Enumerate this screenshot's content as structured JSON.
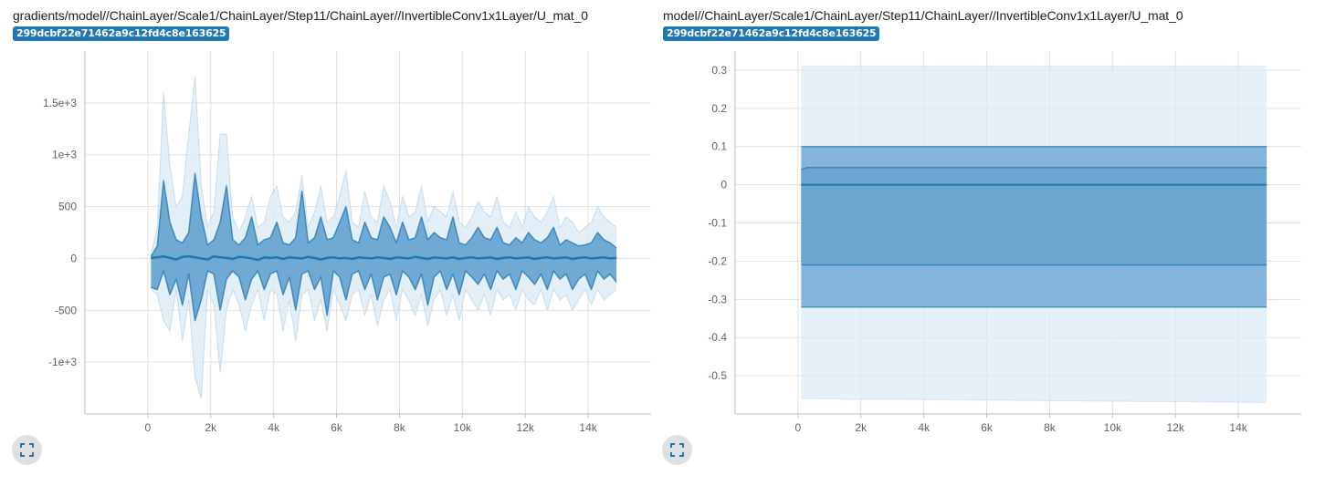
{
  "cards": [
    {
      "title": "gradients/model//ChainLayer/Scale1/ChainLayer/Step11/ChainLayer//InvertibleConv1x1Layer/U_mat_0",
      "run_tag": "299dcbf22e71462a9c12fd4c8e163625",
      "expand_icon": "fullscreen-icon"
    },
    {
      "title": "model//ChainLayer/Scale1/ChainLayer/Step11/ChainLayer//InvertibleConv1x1Layer/U_mat_0",
      "run_tag": "299dcbf22e71462a9c12fd4c8e163625",
      "expand_icon": "fullscreen-icon"
    }
  ],
  "colors": {
    "accent": "#1f77b4",
    "band_light": "#deebf5",
    "band_mid": "#7fb0d8",
    "band_dark": "#5c9ccc",
    "grid": "#e0e0e0"
  },
  "chart_data": [
    {
      "type": "area",
      "title": "gradients/model//ChainLayer/Scale1/ChainLayer/Step11/ChainLayer//InvertibleConv1x1Layer/U_mat_0",
      "xlabel": "",
      "ylabel": "",
      "xlim": [
        -2000,
        16000
      ],
      "ylim": [
        -1500,
        2000
      ],
      "x_ticks": [
        0,
        2000,
        4000,
        6000,
        8000,
        10000,
        12000,
        14000
      ],
      "x_tick_labels": [
        "0",
        "2k",
        "4k",
        "6k",
        "8k",
        "10k",
        "12k",
        "14k"
      ],
      "y_ticks": [
        -1000,
        -500,
        0,
        500,
        1000,
        1500
      ],
      "y_tick_labels": [
        "-1e+3",
        "-500",
        "0",
        "500",
        "1e+3",
        "1.5e+3"
      ],
      "grid": true,
      "bands": {
        "x": [
          100,
          300,
          500,
          700,
          900,
          1100,
          1300,
          1500,
          1700,
          1900,
          2100,
          2300,
          2500,
          2700,
          2900,
          3100,
          3300,
          3500,
          3700,
          3900,
          4100,
          4300,
          4500,
          4700,
          4900,
          5100,
          5300,
          5500,
          5700,
          5900,
          6100,
          6300,
          6500,
          6700,
          6900,
          7100,
          7300,
          7500,
          7700,
          7900,
          8100,
          8300,
          8500,
          8700,
          8900,
          9100,
          9300,
          9500,
          9700,
          9900,
          10100,
          10300,
          10500,
          10700,
          10900,
          11100,
          11300,
          11500,
          11700,
          11900,
          12100,
          12300,
          12500,
          12700,
          12900,
          13100,
          13300,
          13500,
          13700,
          13900,
          14100,
          14300,
          14500,
          14700,
          14900
        ],
        "max": [
          50,
          300,
          1600,
          900,
          500,
          600,
          1200,
          1750,
          700,
          300,
          450,
          1200,
          1200,
          400,
          250,
          400,
          600,
          300,
          350,
          600,
          700,
          400,
          350,
          450,
          800,
          300,
          450,
          700,
          350,
          400,
          600,
          850,
          350,
          300,
          650,
          400,
          350,
          700,
          550,
          300,
          600,
          400,
          450,
          700,
          350,
          500,
          450,
          400,
          650,
          350,
          300,
          400,
          550,
          450,
          400,
          600,
          350,
          300,
          450,
          300,
          500,
          400,
          350,
          450,
          600,
          300,
          400,
          350,
          250,
          300,
          350,
          500,
          400,
          350,
          300
        ],
        "q3": [
          20,
          120,
          750,
          350,
          180,
          150,
          250,
          820,
          400,
          130,
          180,
          350,
          700,
          180,
          130,
          200,
          400,
          130,
          180,
          200,
          350,
          150,
          130,
          200,
          650,
          150,
          200,
          400,
          180,
          200,
          350,
          500,
          180,
          150,
          350,
          200,
          180,
          400,
          300,
          150,
          350,
          180,
          200,
          400,
          180,
          250,
          200,
          180,
          400,
          150,
          130,
          200,
          300,
          200,
          180,
          300,
          150,
          130,
          200,
          150,
          250,
          180,
          150,
          200,
          300,
          130,
          180,
          150,
          120,
          130,
          150,
          250,
          180,
          150,
          100
        ],
        "median": [
          5,
          10,
          20,
          5,
          -10,
          15,
          20,
          10,
          0,
          -10,
          20,
          10,
          5,
          -5,
          15,
          10,
          0,
          -15,
          10,
          5,
          10,
          -5,
          10,
          5,
          0,
          15,
          5,
          -10,
          5,
          10,
          0,
          5,
          -5,
          10,
          5,
          0,
          10,
          5,
          -5,
          10,
          5,
          0,
          15,
          5,
          -5,
          10,
          5,
          0,
          10,
          -5,
          5,
          10,
          0,
          5,
          10,
          -5,
          5,
          10,
          0,
          5,
          10,
          -5,
          5,
          10,
          0,
          5,
          10,
          -5,
          5,
          10,
          0,
          5,
          10,
          0,
          5
        ],
        "q1": [
          -280,
          -300,
          -120,
          -350,
          -200,
          -450,
          -150,
          -600,
          -400,
          -120,
          -150,
          -500,
          -200,
          -120,
          -180,
          -400,
          -200,
          -120,
          -300,
          -150,
          -120,
          -350,
          -180,
          -500,
          -150,
          -120,
          -300,
          -180,
          -550,
          -120,
          -180,
          -400,
          -150,
          -120,
          -300,
          -150,
          -400,
          -180,
          -150,
          -350,
          -120,
          -180,
          -300,
          -150,
          -450,
          -180,
          -120,
          -300,
          -150,
          -350,
          -120,
          -180,
          -250,
          -150,
          -300,
          -120,
          -200,
          -150,
          -300,
          -120,
          -180,
          -250,
          -150,
          -300,
          -120,
          -200,
          -150,
          -300,
          -200,
          -150,
          -300,
          -120,
          -200,
          -150,
          -230
        ],
        "min": [
          -300,
          -350,
          -600,
          -700,
          -300,
          -800,
          -400,
          -1150,
          -1350,
          -300,
          -450,
          -1100,
          -500,
          -300,
          -450,
          -700,
          -450,
          -300,
          -600,
          -300,
          -350,
          -700,
          -400,
          -800,
          -350,
          -300,
          -600,
          -400,
          -700,
          -300,
          -450,
          -600,
          -350,
          -300,
          -550,
          -350,
          -650,
          -400,
          -300,
          -600,
          -300,
          -400,
          -550,
          -350,
          -650,
          -400,
          -300,
          -550,
          -350,
          -600,
          -300,
          -400,
          -500,
          -350,
          -550,
          -300,
          -400,
          -350,
          -500,
          -300,
          -400,
          -450,
          -300,
          -500,
          -300,
          -400,
          -350,
          -500,
          -400,
          -300,
          -450,
          -300,
          -400,
          -350,
          -300
        ]
      }
    },
    {
      "type": "area",
      "title": "model//ChainLayer/Scale1/ChainLayer/Step11/ChainLayer//InvertibleConv1x1Layer/U_mat_0",
      "xlabel": "",
      "ylabel": "",
      "xlim": [
        -2000,
        16000
      ],
      "ylim": [
        -0.6,
        0.35
      ],
      "x_ticks": [
        0,
        2000,
        4000,
        6000,
        8000,
        10000,
        12000,
        14000
      ],
      "x_tick_labels": [
        "0",
        "2k",
        "4k",
        "6k",
        "8k",
        "10k",
        "12k",
        "14k"
      ],
      "y_ticks": [
        -0.5,
        -0.4,
        -0.3,
        -0.2,
        -0.1,
        0,
        0.1,
        0.2,
        0.3
      ],
      "y_tick_labels": [
        "-0.5",
        "-0.4",
        "-0.3",
        "-0.2",
        "-0.1",
        "0",
        "0.1",
        "0.2",
        "0.3"
      ],
      "grid": true,
      "bands": {
        "x": [
          100,
          300,
          500,
          14900
        ],
        "max": [
          0.31,
          0.31,
          0.31,
          0.31
        ],
        "p84": [
          0.1,
          0.1,
          0.1,
          0.1
        ],
        "p69": [
          0.04,
          0.045,
          0.045,
          0.045
        ],
        "median": [
          0,
          0,
          0,
          0
        ],
        "p31": [
          -0.21,
          -0.21,
          -0.21,
          -0.21
        ],
        "p16": [
          -0.32,
          -0.32,
          -0.32,
          -0.32
        ],
        "min": [
          -0.56,
          -0.56,
          -0.56,
          -0.57
        ]
      }
    }
  ]
}
